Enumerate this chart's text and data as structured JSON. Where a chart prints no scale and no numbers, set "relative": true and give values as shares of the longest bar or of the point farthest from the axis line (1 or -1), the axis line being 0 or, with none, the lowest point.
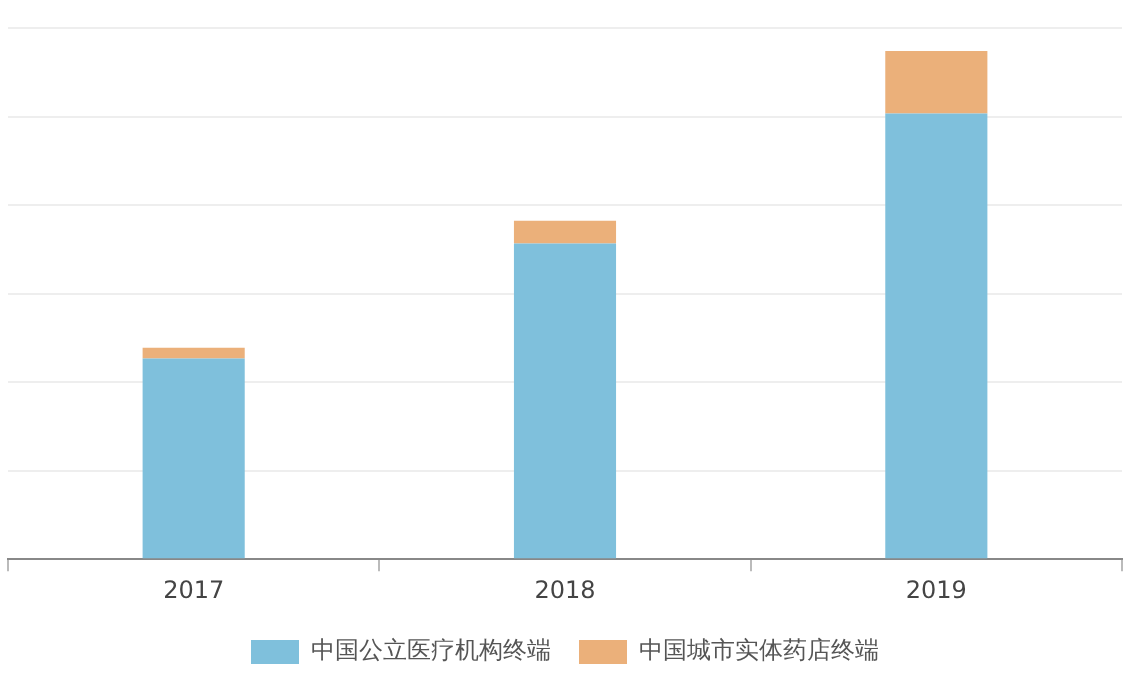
{
  "chart_data": {
    "type": "bar",
    "relative": true,
    "stacked": true,
    "categories": [
      "2017",
      "2018",
      "2019"
    ],
    "series": [
      {
        "name": "中国公立医疗机构终端",
        "color": "#7fc0dc",
        "values": [
          0.395,
          0.621,
          0.877
        ]
      },
      {
        "name": "中国城市实体药店终端",
        "color": "#ebb07a",
        "values": [
          0.021,
          0.045,
          0.123
        ]
      }
    ],
    "grid": "y",
    "legend": "bottom"
  }
}
